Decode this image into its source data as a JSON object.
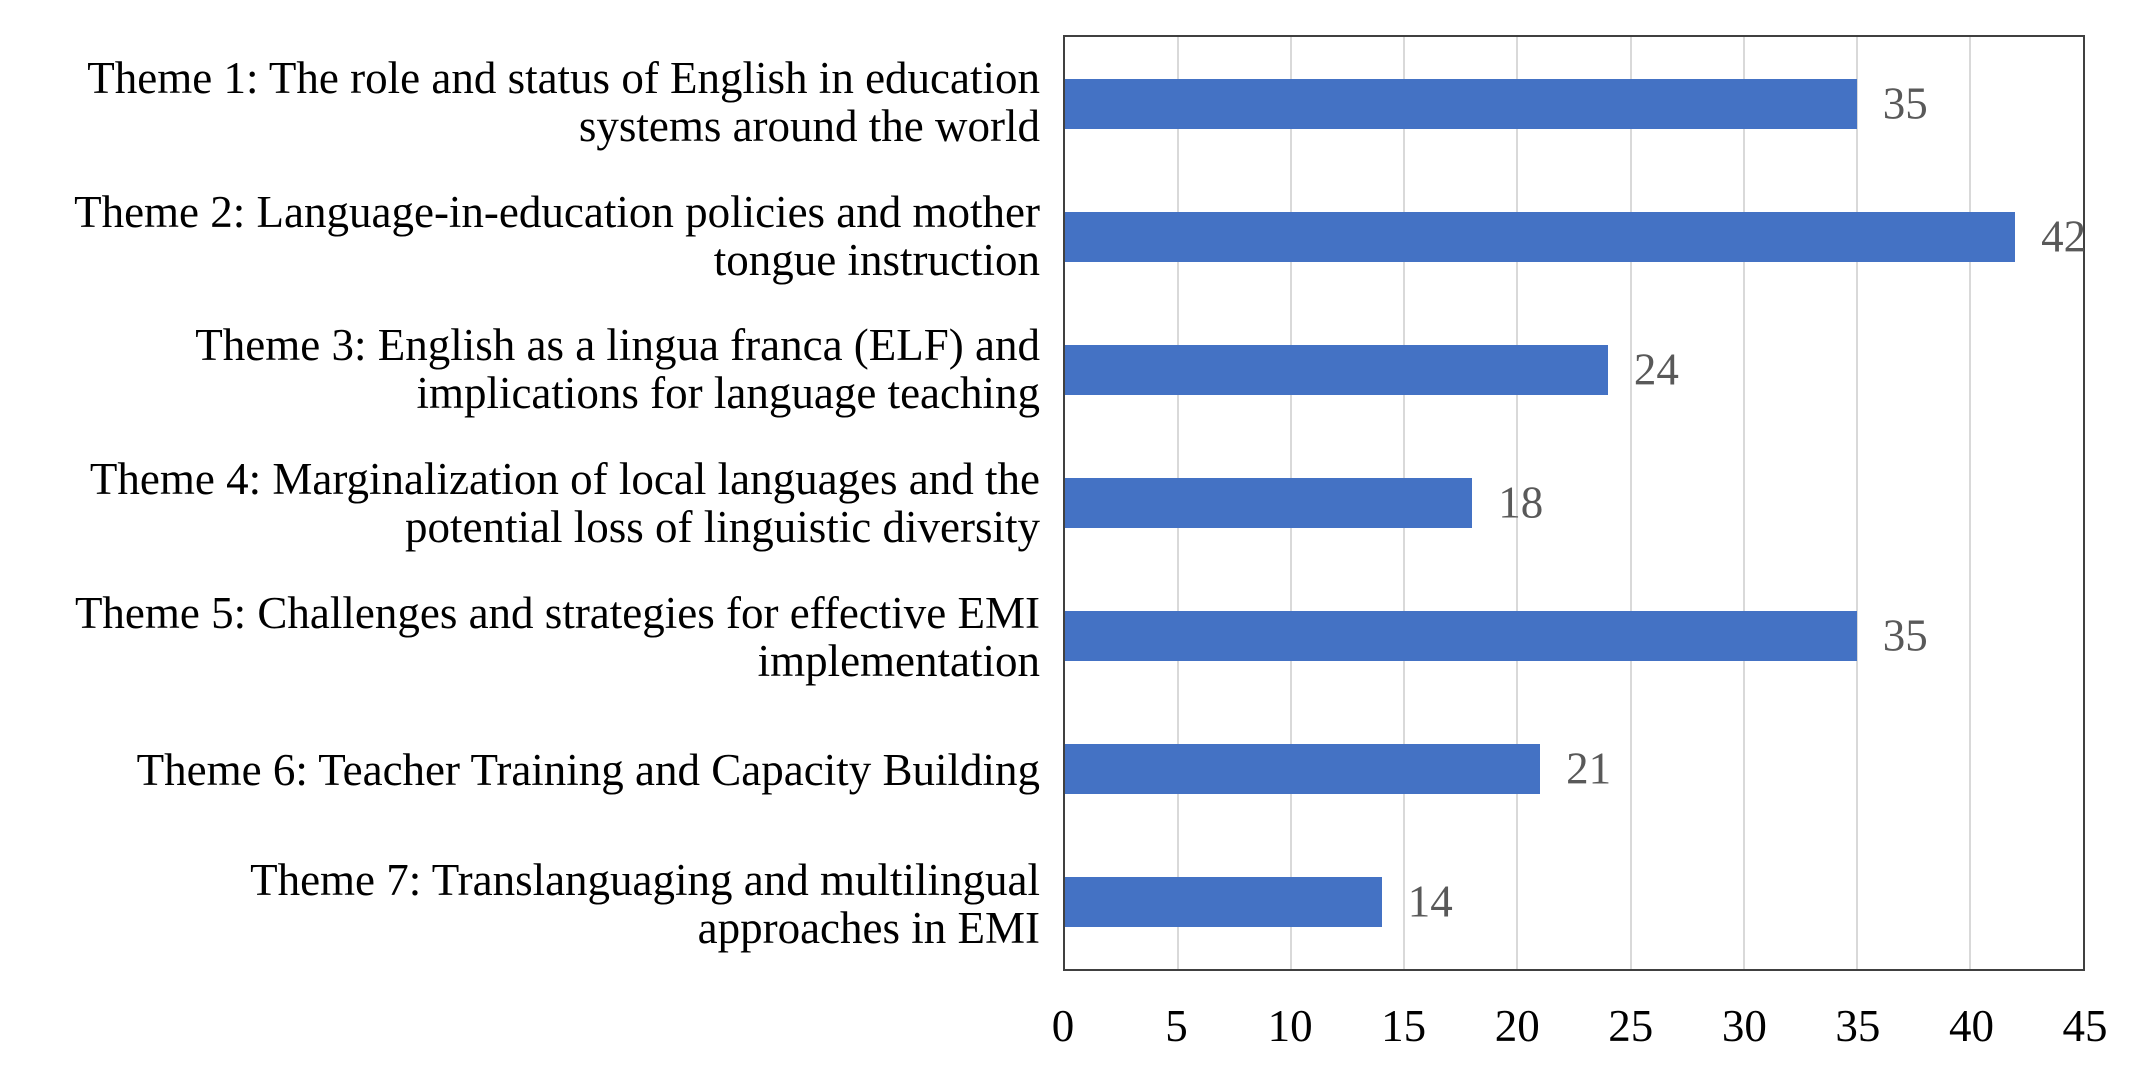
{
  "chart_data": {
    "type": "bar",
    "orientation": "horizontal",
    "categories": [
      "Theme 1: The role and status of English in education\nsystems around the world",
      "Theme 2: Language-in-education policies and mother\ntongue instruction",
      "Theme 3: English as a lingua franca (ELF) and\nimplications for language teaching",
      "Theme 4: Marginalization of local languages and the\npotential loss of linguistic diversity",
      "Theme 5: Challenges and strategies for effective EMI\nimplementation",
      "Theme 6: Teacher Training and Capacity Building",
      "Theme 7: Translanguaging and multilingual\napproaches in EMI"
    ],
    "values": [
      35,
      42,
      24,
      18,
      35,
      21,
      14
    ],
    "data_labels": [
      "35",
      "42",
      "24",
      "18",
      "35",
      "21",
      "14"
    ],
    "xlim": [
      0,
      45
    ],
    "xticks": [
      0,
      5,
      10,
      15,
      20,
      25,
      30,
      35,
      40,
      45
    ],
    "grid": true,
    "legend": false,
    "title": "",
    "xlabel": "",
    "ylabel": "",
    "colors": {
      "bar": "#4472C4",
      "value_label": "#595959",
      "gridline": "#D9D9D9",
      "plot_border": "#404040",
      "category_label": "#000000",
      "tick_label": "#000000",
      "background": "#FFFFFF"
    }
  }
}
